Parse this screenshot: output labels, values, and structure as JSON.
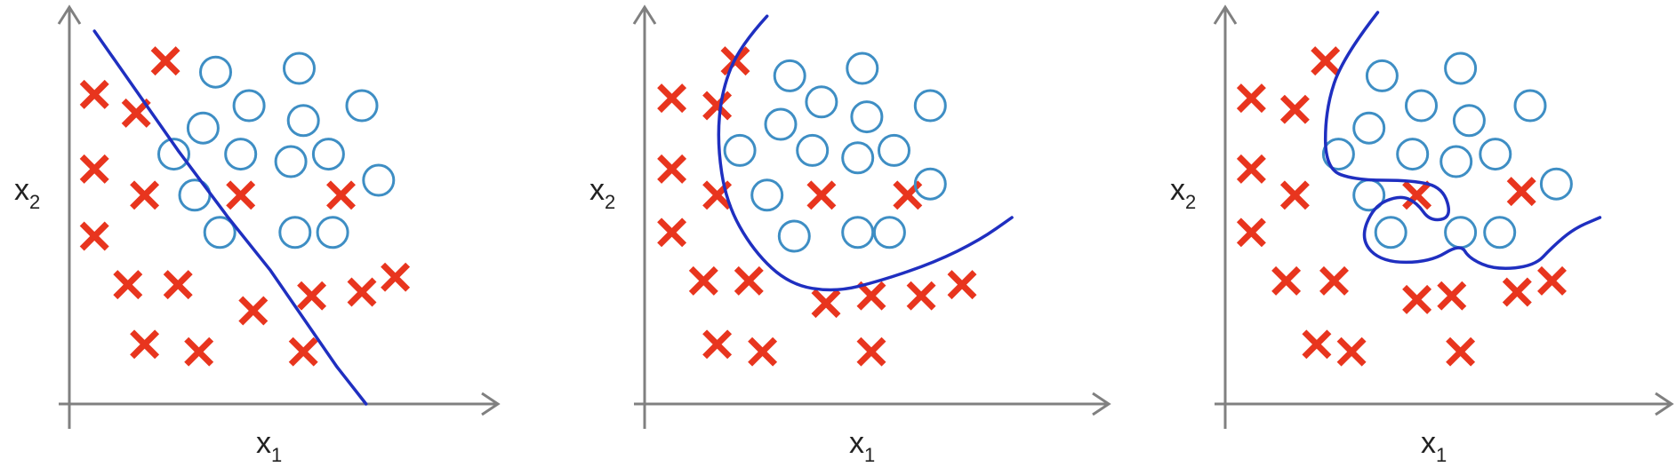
{
  "chart_data": [
    {
      "type": "scatter",
      "title": "",
      "xlabel": "x",
      "xlabel_sub": "1",
      "ylabel": "x",
      "ylabel_sub": "2",
      "boundary": "linear",
      "series": [
        {
          "marker": "x",
          "color": "#e8351e",
          "points": [
            [
              2.3,
              9.2
            ],
            [
              0.6,
              8.3
            ],
            [
              1.6,
              7.8
            ],
            [
              0.6,
              6.3
            ],
            [
              1.8,
              5.6
            ],
            [
              4.1,
              5.6
            ],
            [
              6.5,
              5.6
            ],
            [
              0.6,
              4.5
            ],
            [
              1.4,
              3.2
            ],
            [
              2.6,
              3.2
            ],
            [
              4.4,
              2.5
            ],
            [
              5.8,
              2.9
            ],
            [
              7.0,
              3.0
            ],
            [
              7.8,
              3.4
            ],
            [
              1.8,
              1.6
            ],
            [
              3.1,
              1.4
            ],
            [
              5.6,
              1.4
            ]
          ]
        },
        {
          "marker": "o",
          "color": "#3e8ec4",
          "points": [
            [
              3.5,
              8.9
            ],
            [
              5.5,
              9.0
            ],
            [
              4.3,
              8.0
            ],
            [
              5.6,
              7.6
            ],
            [
              7.0,
              8.0
            ],
            [
              3.2,
              7.4
            ],
            [
              2.5,
              6.7
            ],
            [
              4.1,
              6.7
            ],
            [
              5.3,
              6.5
            ],
            [
              6.2,
              6.7
            ],
            [
              7.4,
              6.0
            ],
            [
              3.0,
              5.6
            ],
            [
              3.6,
              4.6
            ],
            [
              5.4,
              4.6
            ],
            [
              6.3,
              4.6
            ]
          ]
        }
      ],
      "decision_boundary": [
        [
          0.6,
          10.0
        ],
        [
          2.6,
          6.8
        ],
        [
          3.8,
          5.0
        ],
        [
          4.8,
          3.6
        ],
        [
          5.6,
          2.3
        ],
        [
          6.4,
          1.0
        ],
        [
          7.1,
          0.0
        ]
      ]
    },
    {
      "type": "scatter",
      "title": "",
      "xlabel": "x",
      "xlabel_sub": "1",
      "ylabel": "x",
      "ylabel_sub": "2",
      "boundary": "curved",
      "series": [
        {
          "marker": "x",
          "color": "#e8351e",
          "points": [
            [
              2.0,
              9.2
            ],
            [
              0.6,
              8.2
            ],
            [
              1.6,
              8.0
            ],
            [
              0.6,
              6.3
            ],
            [
              1.6,
              5.6
            ],
            [
              3.9,
              5.6
            ],
            [
              5.8,
              5.6
            ],
            [
              0.6,
              4.6
            ],
            [
              1.3,
              3.3
            ],
            [
              2.3,
              3.3
            ],
            [
              4.0,
              2.7
            ],
            [
              5.0,
              2.9
            ],
            [
              6.1,
              2.9
            ],
            [
              7.0,
              3.2
            ],
            [
              1.6,
              1.6
            ],
            [
              2.6,
              1.4
            ],
            [
              5.0,
              1.4
            ]
          ]
        },
        {
          "marker": "o",
          "color": "#3e8ec4",
          "points": [
            [
              3.2,
              8.8
            ],
            [
              4.8,
              9.0
            ],
            [
              3.9,
              8.1
            ],
            [
              4.9,
              7.7
            ],
            [
              6.3,
              8.0
            ],
            [
              3.0,
              7.5
            ],
            [
              2.1,
              6.8
            ],
            [
              3.7,
              6.8
            ],
            [
              4.7,
              6.6
            ],
            [
              5.5,
              6.8
            ],
            [
              6.3,
              5.9
            ],
            [
              2.7,
              5.6
            ],
            [
              3.3,
              4.5
            ],
            [
              4.7,
              4.6
            ],
            [
              5.4,
              4.6
            ]
          ]
        }
      ],
      "decision_boundary": [
        [
          2.7,
          10.4
        ],
        [
          2.1,
          9.6
        ],
        [
          1.7,
          8.4
        ],
        [
          1.6,
          7.0
        ],
        [
          1.8,
          5.4
        ],
        [
          2.4,
          4.1
        ],
        [
          3.2,
          3.2
        ],
        [
          4.2,
          3.0
        ],
        [
          5.2,
          3.3
        ],
        [
          6.4,
          3.8
        ],
        [
          7.4,
          4.4
        ],
        [
          8.1,
          5.0
        ]
      ]
    },
    {
      "type": "scatter",
      "title": "",
      "xlabel": "x",
      "xlabel_sub": "1",
      "ylabel": "x",
      "ylabel_sub": "2",
      "boundary": "overfit",
      "series": [
        {
          "marker": "x",
          "color": "#e8351e",
          "points": [
            [
              2.3,
              9.2
            ],
            [
              0.6,
              8.2
            ],
            [
              1.6,
              7.9
            ],
            [
              0.6,
              6.3
            ],
            [
              1.6,
              5.6
            ],
            [
              4.4,
              5.6
            ],
            [
              6.8,
              5.7
            ],
            [
              0.6,
              4.6
            ],
            [
              1.4,
              3.3
            ],
            [
              2.5,
              3.3
            ],
            [
              4.4,
              2.8
            ],
            [
              5.2,
              2.9
            ],
            [
              6.7,
              3.0
            ],
            [
              7.5,
              3.3
            ],
            [
              2.1,
              1.6
            ],
            [
              2.9,
              1.4
            ],
            [
              5.4,
              1.4
            ]
          ]
        },
        {
          "marker": "o",
          "color": "#3e8ec4",
          "points": [
            [
              3.6,
              8.8
            ],
            [
              5.4,
              9.0
            ],
            [
              4.5,
              8.0
            ],
            [
              5.6,
              7.6
            ],
            [
              7.0,
              8.0
            ],
            [
              3.3,
              7.4
            ],
            [
              2.6,
              6.7
            ],
            [
              4.3,
              6.7
            ],
            [
              5.3,
              6.5
            ],
            [
              6.2,
              6.7
            ],
            [
              7.6,
              5.9
            ],
            [
              3.3,
              5.6
            ],
            [
              3.8,
              4.6
            ],
            [
              5.4,
              4.6
            ],
            [
              6.3,
              4.6
            ]
          ]
        }
      ],
      "decision_boundary": [
        [
          3.5,
          10.5
        ],
        [
          2.7,
          9.3
        ],
        [
          2.3,
          7.9
        ],
        [
          2.3,
          6.3
        ],
        [
          3.0,
          6.0
        ],
        [
          4.3,
          6.0
        ],
        [
          5.0,
          5.8
        ],
        [
          5.2,
          5.0
        ],
        [
          4.7,
          4.9
        ],
        [
          4.4,
          5.4
        ],
        [
          4.0,
          5.6
        ],
        [
          3.4,
          5.3
        ],
        [
          3.1,
          4.4
        ],
        [
          3.6,
          3.8
        ],
        [
          4.7,
          3.8
        ],
        [
          5.4,
          4.3
        ],
        [
          5.6,
          3.9
        ],
        [
          6.2,
          3.6
        ],
        [
          7.1,
          3.7
        ],
        [
          7.5,
          4.2
        ],
        [
          8.0,
          4.7
        ],
        [
          8.6,
          5.0
        ]
      ]
    }
  ]
}
